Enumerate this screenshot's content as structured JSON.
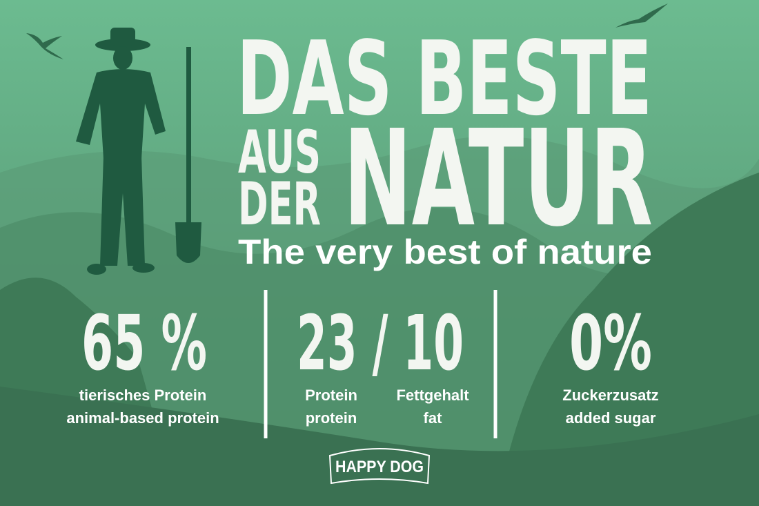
{
  "headline": {
    "line1": "DAS BESTE",
    "line2a": "AUS",
    "line2b": "DER",
    "line2c": "NATUR"
  },
  "subtitle": "The very best of nature",
  "stats": [
    {
      "value": "65 %",
      "labels": [
        "tierisches Protein",
        "animal-based protein"
      ]
    },
    {
      "value": "23 / 10",
      "parts": [
        {
          "de": "Protein",
          "en": "protein"
        },
        {
          "de": "Fettgehalt",
          "en": "fat"
        }
      ]
    },
    {
      "value": "0%",
      "labels": [
        "Zuckerzusatz",
        "added sugar"
      ]
    }
  ],
  "logo": "HAPPY DOG"
}
